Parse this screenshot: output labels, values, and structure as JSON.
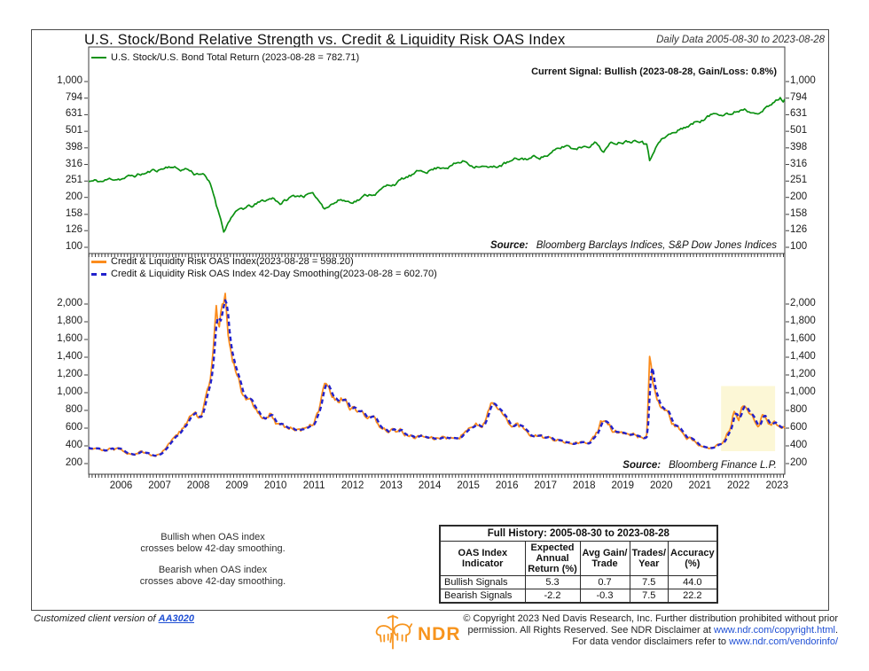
{
  "header": {
    "title": "U.S. Stock/Bond Relative Strength vs. Credit & Liquidity Risk OAS Index",
    "date_range": "Daily Data 2005-08-30 to 2023-08-28"
  },
  "top_chart": {
    "legend": "U.S. Stock/U.S. Bond Total Return (2023-08-28 = 782.71)",
    "current_signal": "Current Signal: Bullish (2023-08-28, Gain/Loss: 0.8%)",
    "source_label": "Source:",
    "source": "Bloomberg Barclays Indices, S&P Dow Jones Indices"
  },
  "bottom_chart": {
    "legend_oas": "Credit & Liquidity Risk OAS Index(2023-08-28 = 598.20)",
    "legend_smoothing": "Credit & Liquidity Risk OAS Index 42-Day Smoothing(2023-08-28 = 602.70)",
    "source_label": "Source:",
    "source": "Bloomberg Finance L.P."
  },
  "annotations": {
    "bullish_line1": "Bullish when OAS index",
    "bullish_line2": "crosses below 42-day smoothing.",
    "bearish_line1": "Bearish when OAS index",
    "bearish_line2": "crosses above 42-day smoothing."
  },
  "table": {
    "title": "Full History: 2005-08-30 to 2023-08-28",
    "columns": [
      "OAS Index Indicator",
      "Expected Annual Return (%)",
      "Avg Gain/ Trade",
      "Trades/ Year",
      "Accuracy (%)"
    ],
    "rows": [
      {
        "label": "Bullish Signals",
        "values": [
          "5.3",
          "0.7",
          "7.5",
          "44.0"
        ]
      },
      {
        "label": "Bearish Signals",
        "values": [
          "-2.2",
          "-0.3",
          "7.5",
          "22.2"
        ]
      }
    ]
  },
  "footer": {
    "custom_text": "Customized client version of ",
    "custom_link": "AA3020",
    "logo_text": "NDR",
    "copyright_line1": "© Copyright 2023 Ned Davis Research, Inc. Further distribution prohibited without prior",
    "copyright_line2_text": "permission. All Rights Reserved. See NDR Disclaimer at ",
    "copyright_line2_link": "www.ndr.com/copyright.html",
    "copyright_line2_suffix": ".",
    "copyright_line3_text": "For data vendor disclaimers refer to ",
    "copyright_line3_link": "www.ndr.com/vendorinfo/"
  },
  "colors": {
    "stock_bond_line": "#0b9111",
    "oas_line": "#fb8c1d",
    "smoothing_line": "#2222cc",
    "highlight": "#fcf7d6",
    "link": "#1f4fd4",
    "ndr_orange": "#f7941d",
    "axis": "#3d3d3d"
  },
  "chart_data": [
    {
      "type": "line",
      "panel": "top",
      "yscale": "log",
      "ylim": [
        100,
        1000
      ],
      "x_range": [
        2005.66,
        2023.7
      ],
      "grid": false,
      "yticks": [
        {
          "v": 1000,
          "label": "1,000"
        },
        {
          "v": 794,
          "label": "794"
        },
        {
          "v": 631,
          "label": "631"
        },
        {
          "v": 501,
          "label": "501"
        },
        {
          "v": 398,
          "label": "398"
        },
        {
          "v": 316,
          "label": "316"
        },
        {
          "v": 251,
          "label": "251"
        },
        {
          "v": 200,
          "label": "200"
        },
        {
          "v": 158,
          "label": "158"
        },
        {
          "v": 126,
          "label": "126"
        },
        {
          "v": 100,
          "label": "100"
        }
      ],
      "series": [
        {
          "name": "U.S. Stock/U.S. Bond Total Return",
          "last_date": "2023-08-28",
          "last_value": 782.71,
          "anchors": [
            [
              2005.66,
              250
            ],
            [
              2006.0,
              248
            ],
            [
              2006.4,
              262
            ],
            [
              2006.8,
              268
            ],
            [
              2007.2,
              282
            ],
            [
              2007.5,
              295
            ],
            [
              2007.8,
              313
            ],
            [
              2008.0,
              295
            ],
            [
              2008.2,
              300
            ],
            [
              2008.4,
              280
            ],
            [
              2008.6,
              285
            ],
            [
              2008.8,
              240
            ],
            [
              2009.0,
              170
            ],
            [
              2009.17,
              126
            ],
            [
              2009.35,
              155
            ],
            [
              2009.6,
              168
            ],
            [
              2009.9,
              175
            ],
            [
              2010.2,
              188
            ],
            [
              2010.45,
              198
            ],
            [
              2010.65,
              185
            ],
            [
              2010.9,
              200
            ],
            [
              2011.1,
              205
            ],
            [
              2011.35,
              210
            ],
            [
              2011.55,
              198
            ],
            [
              2011.75,
              175
            ],
            [
              2011.95,
              186
            ],
            [
              2012.2,
              196
            ],
            [
              2012.4,
              190
            ],
            [
              2012.7,
              200
            ],
            [
              2013.0,
              212
            ],
            [
              2013.3,
              228
            ],
            [
              2013.6,
              245
            ],
            [
              2013.9,
              262
            ],
            [
              2014.2,
              278
            ],
            [
              2014.5,
              295
            ],
            [
              2014.8,
              308
            ],
            [
              2015.1,
              320
            ],
            [
              2015.4,
              330
            ],
            [
              2015.6,
              315
            ],
            [
              2015.8,
              322
            ],
            [
              2016.1,
              300
            ],
            [
              2016.4,
              318
            ],
            [
              2016.7,
              330
            ],
            [
              2017.0,
              340
            ],
            [
              2017.3,
              352
            ],
            [
              2017.6,
              368
            ],
            [
              2017.9,
              390
            ],
            [
              2018.05,
              410
            ],
            [
              2018.2,
              392
            ],
            [
              2018.5,
              415
            ],
            [
              2018.8,
              438
            ],
            [
              2019.0,
              385
            ],
            [
              2019.2,
              420
            ],
            [
              2019.5,
              445
            ],
            [
              2019.75,
              455
            ],
            [
              2020.0,
              468
            ],
            [
              2020.13,
              430
            ],
            [
              2020.2,
              345
            ],
            [
              2020.35,
              425
            ],
            [
              2020.5,
              455
            ],
            [
              2020.7,
              480
            ],
            [
              2020.9,
              495
            ],
            [
              2021.1,
              532
            ],
            [
              2021.35,
              562
            ],
            [
              2021.6,
              598
            ],
            [
              2021.85,
              635
            ],
            [
              2022.05,
              655
            ],
            [
              2022.2,
              675
            ],
            [
              2022.35,
              648
            ],
            [
              2022.5,
              672
            ],
            [
              2022.65,
              702
            ],
            [
              2022.8,
              672
            ],
            [
              2022.95,
              690
            ],
            [
              2023.1,
              706
            ],
            [
              2023.25,
              722
            ],
            [
              2023.4,
              740
            ],
            [
              2023.5,
              775
            ],
            [
              2023.58,
              798
            ],
            [
              2023.64,
              765
            ],
            [
              2023.7,
              782.71
            ]
          ]
        }
      ]
    },
    {
      "type": "line",
      "panel": "bottom",
      "yscale": "linear",
      "ylim": [
        200,
        2000
      ],
      "x_range": [
        2005.66,
        2023.7
      ],
      "grid": false,
      "yticks": [
        {
          "v": 2000,
          "label": "2,000"
        },
        {
          "v": 1800,
          "label": "1,800"
        },
        {
          "v": 1600,
          "label": "1,600"
        },
        {
          "v": 1400,
          "label": "1,400"
        },
        {
          "v": 1200,
          "label": "1,200"
        },
        {
          "v": 1000,
          "label": "1,000"
        },
        {
          "v": 800,
          "label": "800"
        },
        {
          "v": 600,
          "label": "600"
        },
        {
          "v": 400,
          "label": "400"
        },
        {
          "v": 200,
          "label": "200"
        }
      ],
      "xticks": [
        2006,
        2007,
        2008,
        2009,
        2010,
        2011,
        2012,
        2013,
        2014,
        2015,
        2016,
        2017,
        2018,
        2019,
        2020,
        2021,
        2022,
        2023
      ],
      "highlight_region": {
        "x_from": 2022.05,
        "x_to": 2023.45,
        "v_from": 340,
        "v_to": 1075
      },
      "series": [
        {
          "name": "Credit & Liquidity Risk OAS Index",
          "last_date": "2023-08-28",
          "last_value": 598.2,
          "anchors": [
            [
              2005.66,
              380
            ],
            [
              2005.85,
              405
            ],
            [
              2006.05,
              390
            ],
            [
              2006.3,
              365
            ],
            [
              2006.55,
              345
            ],
            [
              2006.8,
              330
            ],
            [
              2007.0,
              345
            ],
            [
              2007.15,
              310
            ],
            [
              2007.35,
              295
            ],
            [
              2007.5,
              320
            ],
            [
              2007.65,
              400
            ],
            [
              2007.8,
              480
            ],
            [
              2007.95,
              545
            ],
            [
              2008.1,
              600
            ],
            [
              2008.25,
              680
            ],
            [
              2008.4,
              760
            ],
            [
              2008.5,
              700
            ],
            [
              2008.65,
              820
            ],
            [
              2008.8,
              1150
            ],
            [
              2008.9,
              1600
            ],
            [
              2008.96,
              2060
            ],
            [
              2009.02,
              1820
            ],
            [
              2009.1,
              1950
            ],
            [
              2009.2,
              2140
            ],
            [
              2009.28,
              1650
            ],
            [
              2009.38,
              1320
            ],
            [
              2009.5,
              1120
            ],
            [
              2009.65,
              960
            ],
            [
              2009.8,
              880
            ],
            [
              2010.0,
              780
            ],
            [
              2010.2,
              720
            ],
            [
              2010.35,
              760
            ],
            [
              2010.5,
              680
            ],
            [
              2010.7,
              640
            ],
            [
              2010.9,
              620
            ],
            [
              2011.1,
              600
            ],
            [
              2011.3,
              590
            ],
            [
              2011.5,
              680
            ],
            [
              2011.65,
              820
            ],
            [
              2011.77,
              1060
            ],
            [
              2011.9,
              950
            ],
            [
              2012.0,
              880
            ],
            [
              2012.15,
              820
            ],
            [
              2012.3,
              900
            ],
            [
              2012.45,
              820
            ],
            [
              2012.6,
              760
            ],
            [
              2012.8,
              700
            ],
            [
              2013.0,
              660
            ],
            [
              2013.2,
              620
            ],
            [
              2013.4,
              580
            ],
            [
              2013.6,
              560
            ],
            [
              2013.8,
              540
            ],
            [
              2014.0,
              520
            ],
            [
              2014.2,
              500
            ],
            [
              2014.4,
              480
            ],
            [
              2014.6,
              470
            ],
            [
              2014.8,
              490
            ],
            [
              2015.0,
              510
            ],
            [
              2015.2,
              545
            ],
            [
              2015.4,
              580
            ],
            [
              2015.6,
              620
            ],
            [
              2015.8,
              660
            ],
            [
              2015.95,
              720
            ],
            [
              2016.1,
              880
            ],
            [
              2016.2,
              800
            ],
            [
              2016.35,
              720
            ],
            [
              2016.5,
              660
            ],
            [
              2016.7,
              620
            ],
            [
              2016.9,
              580
            ],
            [
              2017.1,
              540
            ],
            [
              2017.3,
              510
            ],
            [
              2017.5,
              490
            ],
            [
              2017.7,
              470
            ],
            [
              2017.9,
              455
            ],
            [
              2018.1,
              470
            ],
            [
              2018.3,
              485
            ],
            [
              2018.5,
              470
            ],
            [
              2018.7,
              490
            ],
            [
              2018.85,
              560
            ],
            [
              2018.95,
              680
            ],
            [
              2019.05,
              620
            ],
            [
              2019.2,
              560
            ],
            [
              2019.4,
              530
            ],
            [
              2019.6,
              510
            ],
            [
              2019.8,
              500
            ],
            [
              2020.0,
              490
            ],
            [
              2020.13,
              520
            ],
            [
              2020.2,
              1340
            ],
            [
              2020.28,
              1050
            ],
            [
              2020.38,
              880
            ],
            [
              2020.5,
              790
            ],
            [
              2020.65,
              700
            ],
            [
              2020.8,
              620
            ],
            [
              2021.0,
              545
            ],
            [
              2021.2,
              490
            ],
            [
              2021.4,
              450
            ],
            [
              2021.6,
              425
            ],
            [
              2021.8,
              415
            ],
            [
              2022.0,
              450
            ],
            [
              2022.15,
              510
            ],
            [
              2022.3,
              640
            ],
            [
              2022.4,
              820
            ],
            [
              2022.5,
              700
            ],
            [
              2022.6,
              830
            ],
            [
              2022.7,
              760
            ],
            [
              2022.8,
              700
            ],
            [
              2022.9,
              660
            ],
            [
              2023.0,
              640
            ],
            [
              2023.1,
              740
            ],
            [
              2023.2,
              700
            ],
            [
              2023.35,
              650
            ],
            [
              2023.45,
              690
            ],
            [
              2023.55,
              640
            ],
            [
              2023.62,
              610
            ],
            [
              2023.7,
              598.2
            ]
          ]
        },
        {
          "name": "Credit & Liquidity Risk OAS Index 42-Day Smoothing",
          "last_date": "2023-08-28",
          "last_value": 602.7,
          "derived": "42-day moving average of OAS Index"
        }
      ]
    }
  ]
}
